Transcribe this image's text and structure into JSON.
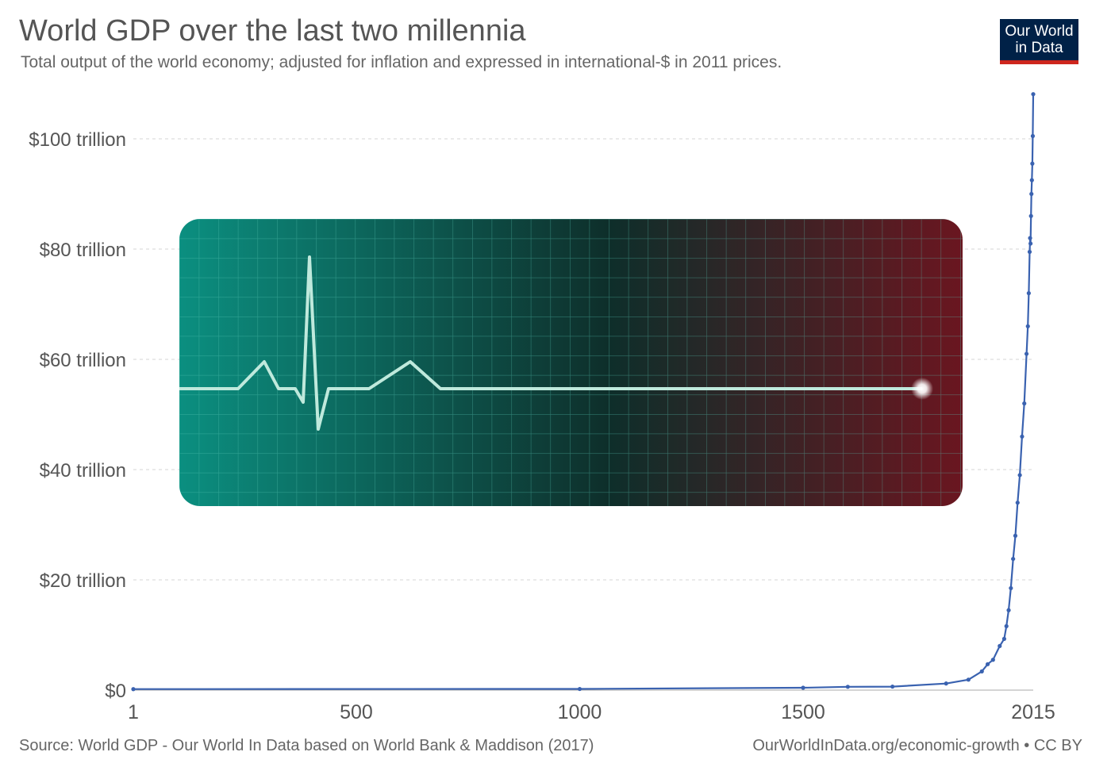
{
  "header": {
    "title": "World GDP over the last two millennia",
    "subtitle": "Total output of the world economy; adjusted for inflation and expressed in international-$ in 2011 prices."
  },
  "logo": {
    "line1": "Our World",
    "line2": "in Data"
  },
  "footer": {
    "source": "Source: World GDP - Our World In Data based on World Bank & Maddison (2017)",
    "link": "OurWorldInData.org/economic-growth • CC BY"
  },
  "colors": {
    "series": "#3a62b0",
    "grid": "#dddddd",
    "logo_bg": "#002147",
    "logo_accent": "#ce261e"
  },
  "overlay": {
    "type": "ecg-flatline-image",
    "gradient": [
      "#0b8f80",
      "#0e2e2a",
      "#6a1620"
    ],
    "line_color": "#bfe9dc"
  },
  "chart_data": {
    "type": "line",
    "title": "World GDP over the last two millennia",
    "xlabel": "",
    "ylabel": "",
    "x_ticks": [
      1,
      500,
      1000,
      1500,
      2015
    ],
    "x_tick_labels": [
      "1",
      "500",
      "1000",
      "1500",
      "2015"
    ],
    "y_ticks": [
      0,
      20,
      40,
      60,
      80,
      100
    ],
    "y_tick_labels": [
      "$0",
      "$20 trillion",
      "$40 trillion",
      "$60 trillion",
      "$80 trillion",
      "$100 trillion"
    ],
    "xlim": [
      1,
      2015
    ],
    "ylim": [
      0,
      100
    ],
    "grid": "horizontal-dashed",
    "series": [
      {
        "x": [
          1,
          1000,
          1500,
          1600,
          1700,
          1820,
          1870,
          1900,
          1913,
          1925,
          1940,
          1950,
          1955,
          1960,
          1965,
          1970,
          1975,
          1980,
          1985,
          1990,
          1995,
          2000,
          2003,
          2005,
          2007,
          2008,
          2009,
          2010,
          2011,
          2012,
          2013,
          2014,
          2015
        ],
        "values": [
          0.18,
          0.21,
          0.43,
          0.6,
          0.64,
          1.2,
          1.9,
          3.4,
          4.7,
          5.5,
          8.0,
          9.3,
          11.6,
          14.5,
          18.5,
          23.8,
          28.0,
          34.0,
          39.0,
          46.0,
          52.0,
          61.0,
          66.0,
          72.0,
          79.5,
          82.0,
          81.0,
          86.0,
          90.0,
          92.5,
          95.5,
          100.5,
          108.1
        ]
      }
    ]
  }
}
